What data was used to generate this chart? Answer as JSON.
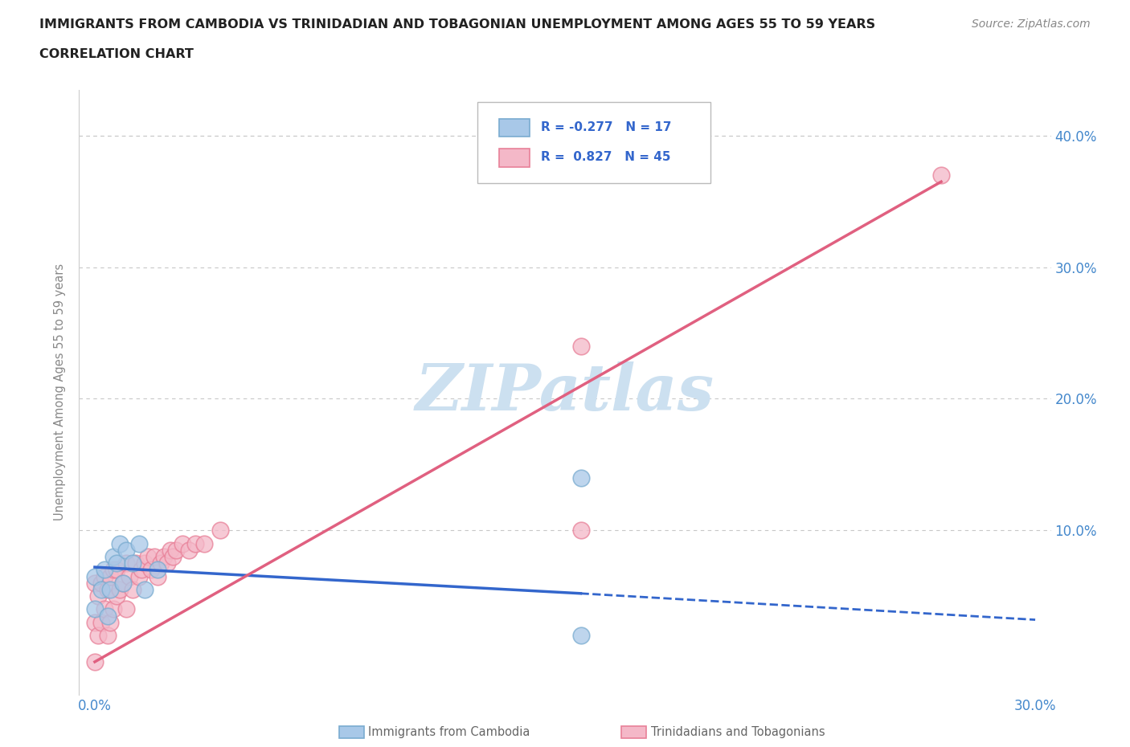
{
  "title_line1": "IMMIGRANTS FROM CAMBODIA VS TRINIDADIAN AND TOBAGONIAN UNEMPLOYMENT AMONG AGES 55 TO 59 YEARS",
  "title_line2": "CORRELATION CHART",
  "source_text": "Source: ZipAtlas.com",
  "ylabel": "Unemployment Among Ages 55 to 59 years",
  "xlim": [
    -0.005,
    0.305
  ],
  "ylim": [
    -0.025,
    0.435
  ],
  "background_color": "#ffffff",
  "grid_color": "#c8c8c8",
  "watermark_text": "ZIPatlas",
  "watermark_color": "#cce0f0",
  "cambodia_fill": "#a8c8e8",
  "cambodia_edge": "#7aacd0",
  "trinidadian_fill": "#f4b8c8",
  "trinidadian_edge": "#e88098",
  "legend_text_color": "#3366cc",
  "cambodia_line_color": "#3366cc",
  "trinidadian_line_color": "#e06080",
  "axis_label_color": "#4488cc",
  "ylabel_color": "#888888",
  "title_color": "#222222",
  "source_color": "#888888",
  "legend_border_color": "#bbbbbb",
  "cambodia_x": [
    0.0,
    0.0,
    0.002,
    0.003,
    0.004,
    0.005,
    0.006,
    0.007,
    0.008,
    0.009,
    0.01,
    0.012,
    0.014,
    0.016,
    0.02,
    0.155,
    0.155
  ],
  "cambodia_y": [
    0.065,
    0.04,
    0.055,
    0.07,
    0.035,
    0.055,
    0.08,
    0.075,
    0.09,
    0.06,
    0.085,
    0.075,
    0.09,
    0.055,
    0.07,
    0.14,
    0.02
  ],
  "trinidadian_x": [
    0.0,
    0.0,
    0.0,
    0.001,
    0.001,
    0.002,
    0.002,
    0.003,
    0.003,
    0.004,
    0.004,
    0.005,
    0.005,
    0.006,
    0.006,
    0.007,
    0.007,
    0.008,
    0.009,
    0.01,
    0.01,
    0.011,
    0.012,
    0.013,
    0.014,
    0.015,
    0.016,
    0.017,
    0.018,
    0.019,
    0.02,
    0.021,
    0.022,
    0.023,
    0.024,
    0.025,
    0.026,
    0.028,
    0.03,
    0.032,
    0.035,
    0.04,
    0.155,
    0.155,
    0.27
  ],
  "trinidadian_y": [
    0.0,
    0.03,
    0.06,
    0.02,
    0.05,
    0.03,
    0.06,
    0.04,
    0.065,
    0.02,
    0.055,
    0.03,
    0.065,
    0.04,
    0.07,
    0.05,
    0.07,
    0.055,
    0.06,
    0.04,
    0.075,
    0.065,
    0.055,
    0.075,
    0.065,
    0.07,
    0.075,
    0.08,
    0.07,
    0.08,
    0.065,
    0.075,
    0.08,
    0.075,
    0.085,
    0.08,
    0.085,
    0.09,
    0.085,
    0.09,
    0.09,
    0.1,
    0.1,
    0.24,
    0.37
  ],
  "camb_line_x0": 0.0,
  "camb_line_y0": 0.072,
  "camb_line_x1": 0.155,
  "camb_line_y1": 0.052,
  "camb_line_xdash0": 0.155,
  "camb_line_ydash0": 0.052,
  "camb_line_xdash1": 0.3,
  "camb_line_ydash1": 0.032,
  "trin_line_x0": 0.0,
  "trin_line_y0": 0.0,
  "trin_line_x1": 0.27,
  "trin_line_y1": 0.365
}
